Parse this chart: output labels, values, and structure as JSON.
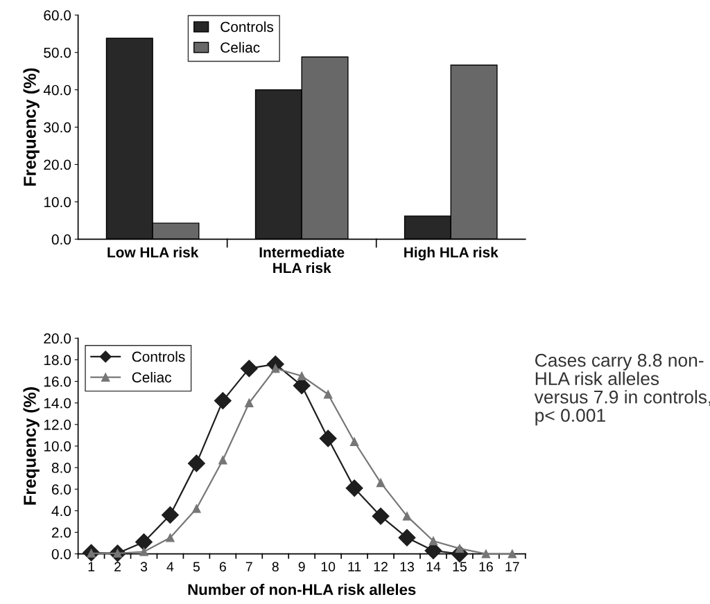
{
  "chart_data": [
    {
      "type": "bar",
      "ylabel": "Frequency (%)",
      "categories": [
        "Low HLA risk",
        "Intermediate\nHLA risk",
        "High HLA risk"
      ],
      "series": [
        {
          "name": "Controls",
          "color": "#282828",
          "values": [
            53.8,
            40.0,
            6.2
          ]
        },
        {
          "name": "Celiac",
          "color": "#686868",
          "values": [
            4.3,
            48.8,
            46.6
          ]
        }
      ],
      "ylim": [
        0,
        60
      ],
      "yticks": [
        {
          "value": 0,
          "label": "0.0"
        },
        {
          "value": 10,
          "label": "10.0"
        },
        {
          "value": 20,
          "label": "20.0"
        },
        {
          "value": 30,
          "label": "30.0"
        },
        {
          "value": 40,
          "label": "40.0"
        },
        {
          "value": 50,
          "label": "50.0"
        },
        {
          "value": 60,
          "label": "60.0"
        }
      ],
      "grid": false,
      "legend": "top"
    },
    {
      "type": "line",
      "xlabel": "Number of non-HLA risk alleles",
      "ylabel": "Frequency (%)",
      "categories": [
        "1",
        "2",
        "3",
        "4",
        "5",
        "6",
        "7",
        "8",
        "9",
        "10",
        "11",
        "12",
        "13",
        "14",
        "15",
        "16",
        "17"
      ],
      "series": [
        {
          "name": "Controls",
          "color": "#1e1e1e",
          "marker": "diamond",
          "values": [
            0.1,
            0.05,
            1.1,
            3.6,
            8.4,
            14.2,
            17.2,
            17.6,
            15.6,
            10.7,
            6.1,
            3.5,
            1.5,
            0.3,
            0.0,
            null,
            null
          ]
        },
        {
          "name": "Celiac",
          "color": "#767676",
          "marker": "triangle",
          "values": [
            0.05,
            0.05,
            0.2,
            1.5,
            4.2,
            8.7,
            14.0,
            17.2,
            16.5,
            14.8,
            10.4,
            6.6,
            3.5,
            1.2,
            0.5,
            0.0,
            0.0
          ]
        }
      ],
      "ylim": [
        0,
        20
      ],
      "yticks": [
        {
          "value": 0,
          "label": "0.0"
        },
        {
          "value": 2,
          "label": "2.0"
        },
        {
          "value": 4,
          "label": "4.0"
        },
        {
          "value": 6,
          "label": "6.0"
        },
        {
          "value": 8,
          "label": "8.0"
        },
        {
          "value": 10,
          "label": "10.0"
        },
        {
          "value": 12,
          "label": "12.0"
        },
        {
          "value": 14,
          "label": "14.0"
        },
        {
          "value": 16,
          "label": "16.0"
        },
        {
          "value": 18,
          "label": "18.0"
        },
        {
          "value": 20,
          "label": "20.0"
        }
      ],
      "grid": false,
      "legend": "top left",
      "annotations": [
        "Cases carry 8.8 non-\nHLA risk alleles\nversus 7.9 in controls,\np< 0.001"
      ]
    }
  ]
}
